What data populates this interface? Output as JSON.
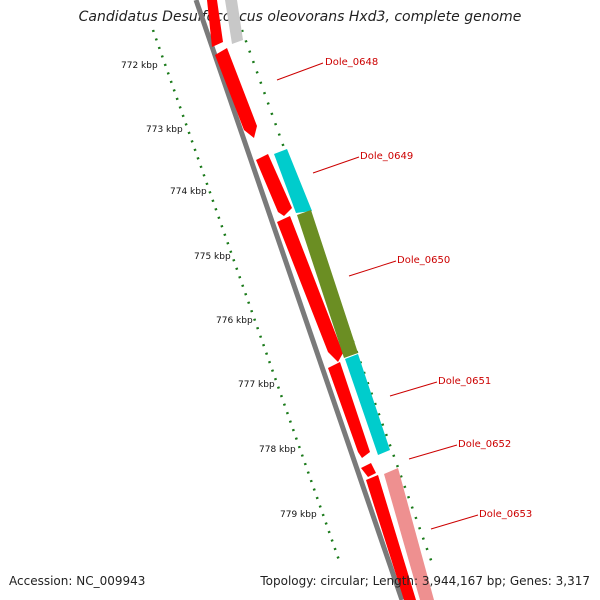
{
  "title": "Candidatus Desulfococcus oleovorans Hxd3, complete genome",
  "accession": "Accession: NC_009943",
  "info": "Topology: circular; Length: 3,944,167 bp; Genes: 3,317",
  "colors": {
    "ruler": "#1a7a1a",
    "backbone": "#808080",
    "gene_label": "#cc0000",
    "cds_red": "#ff0000",
    "cds_cyan": "#00cccc",
    "cds_olive": "#6b8e23",
    "cds_pink": "#ee9090",
    "cds_grey": "#c8c8c8"
  },
  "kbp_ticks": [
    "772 kbp",
    "773 kbp",
    "774 kbp",
    "775 kbp",
    "776 kbp",
    "777 kbp",
    "778 kbp",
    "779 kbp"
  ],
  "gene_labels": [
    "Dole_0648",
    "Dole_0649",
    "Dole_0650",
    "Dole_0651",
    "Dole_0652",
    "Dole_0653"
  ],
  "genes": [
    {
      "name": "Dole_0648",
      "strand": "-",
      "color": "red"
    },
    {
      "name": "Dole_0649",
      "strand": "+",
      "color": "cyan"
    },
    {
      "name": "Dole_0650",
      "strand": "+",
      "color": "olive"
    },
    {
      "name": "Dole_0651",
      "strand": "+",
      "color": "cyan"
    },
    {
      "name": "Dole_0652",
      "strand": "-",
      "color": "red"
    },
    {
      "name": "Dole_0653",
      "strand": "-",
      "color": "pink"
    }
  ]
}
